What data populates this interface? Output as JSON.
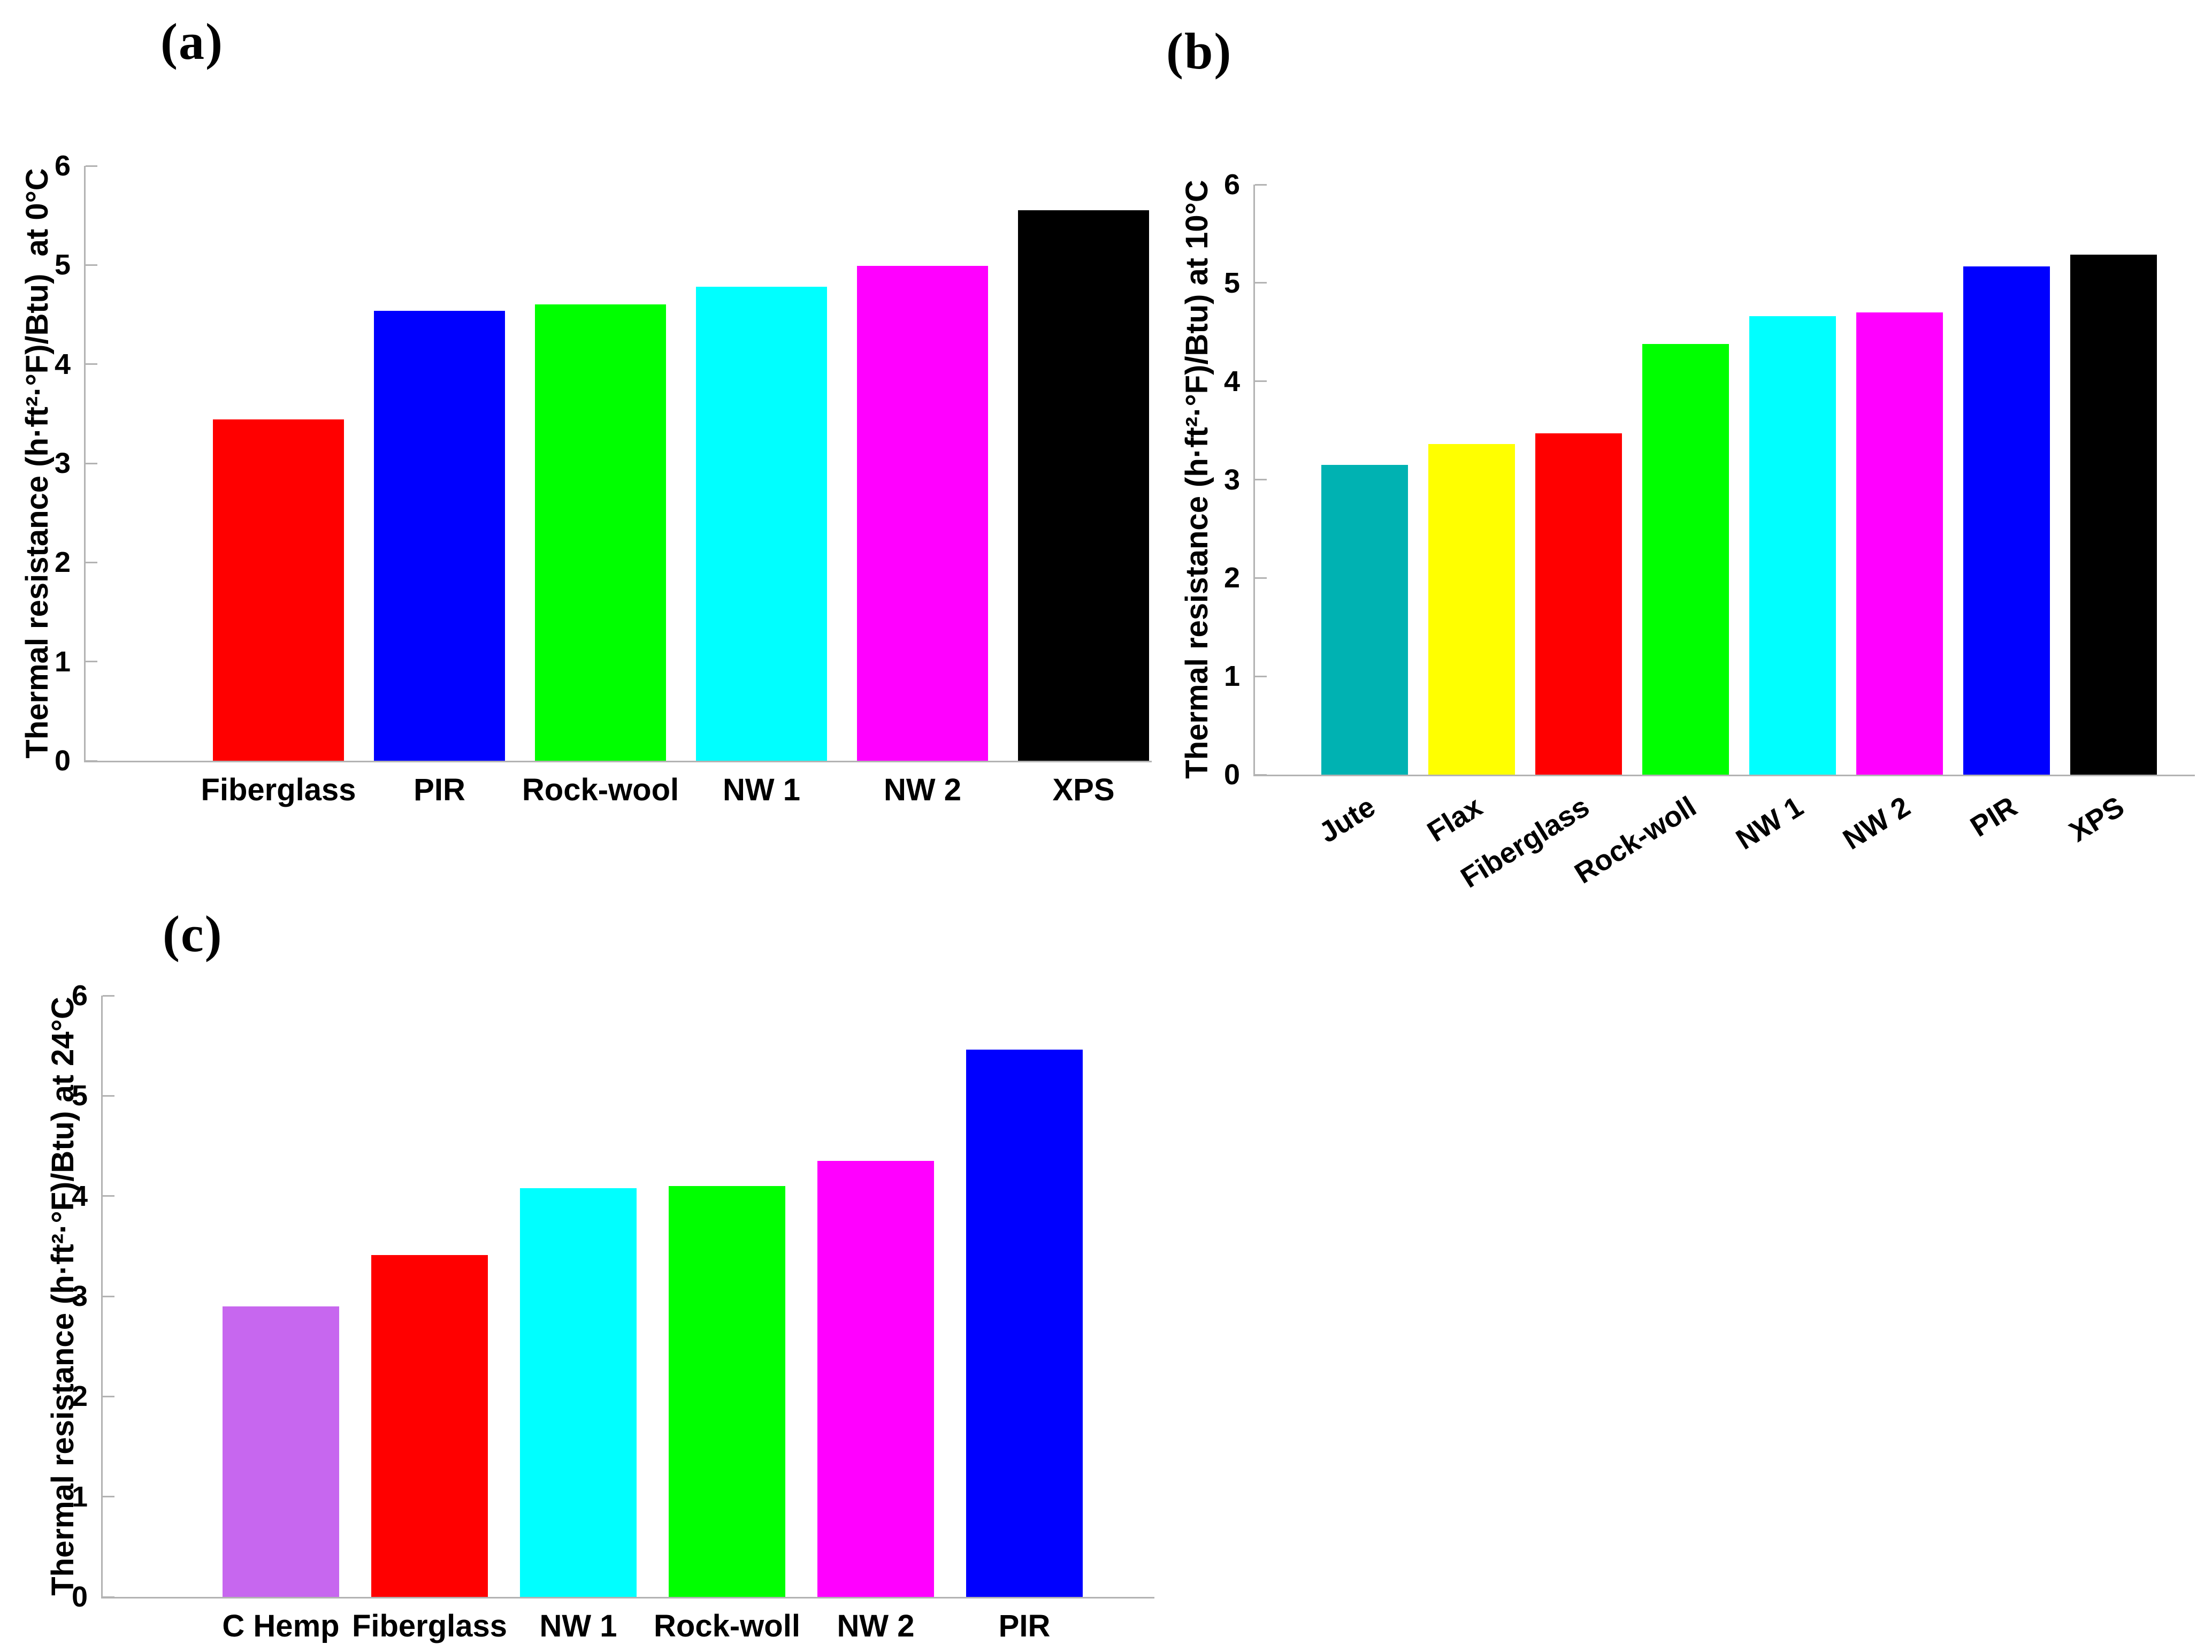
{
  "page": {
    "background_color": "#ffffff",
    "axis_color": "#b3b3b3",
    "text_color": "#000000"
  },
  "chart_data": [
    {
      "type": "bar",
      "title": "(a)",
      "categories": [
        "Fiberglass",
        "PIR",
        "Rock-wool",
        "NW 1",
        "NW 2",
        "XPS"
      ],
      "values": [
        3.44,
        4.54,
        4.6,
        4.78,
        4.99,
        5.55
      ],
      "bar_colors": [
        "#FF0000",
        "#0000FF",
        "#00FF00",
        "#00FFFF",
        "#FF00FF",
        "#000000"
      ],
      "xlabel": "",
      "ylabel": "Thermal resistance (h·ft²·°F)/Btu)  at 0°C",
      "ylim": [
        0,
        6
      ],
      "yticks": [
        0,
        1,
        2,
        3,
        4,
        5,
        6
      ],
      "xtick_rotation_deg": 0,
      "grid": false,
      "legend": null
    },
    {
      "type": "bar",
      "title": "(b)",
      "categories": [
        "Jute",
        "Flax",
        "Fiberglass",
        "Rock-woll",
        "NW 1",
        "NW 2",
        "PIR",
        "XPS"
      ],
      "values": [
        3.15,
        3.36,
        3.47,
        4.38,
        4.66,
        4.7,
        5.17,
        5.29
      ],
      "bar_colors": [
        "#00B2B2",
        "#FFFF00",
        "#FF0000",
        "#00FF00",
        "#00FFFF",
        "#FF00FF",
        "#0000FF",
        "#000000"
      ],
      "xlabel": "",
      "ylabel": "Thermal resistance (h·ft²·°F)/Btu) at 10°C",
      "ylim": [
        0,
        6
      ],
      "yticks": [
        0,
        1,
        2,
        3,
        4,
        5,
        6
      ],
      "xtick_rotation_deg": 32,
      "grid": false,
      "legend": null
    },
    {
      "type": "bar",
      "title": "(c)",
      "categories": [
        "C Hemp",
        "Fiberglass",
        "NW 1",
        "Rock-woll",
        "NW 2",
        "PIR"
      ],
      "values": [
        2.9,
        3.41,
        4.08,
        4.1,
        4.35,
        5.46
      ],
      "bar_colors": [
        "#C767EF",
        "#FF0000",
        "#00FFFF",
        "#00FF00",
        "#FF00FF",
        "#0000FF"
      ],
      "xlabel": "",
      "ylabel": "Thermal resistance (h·ft²·°F)/Btu) at 24°C",
      "ylim": [
        0,
        6
      ],
      "yticks": [
        0,
        1,
        2,
        3,
        4,
        5,
        6
      ],
      "xtick_rotation_deg": 0,
      "grid": false,
      "legend": null
    }
  ]
}
